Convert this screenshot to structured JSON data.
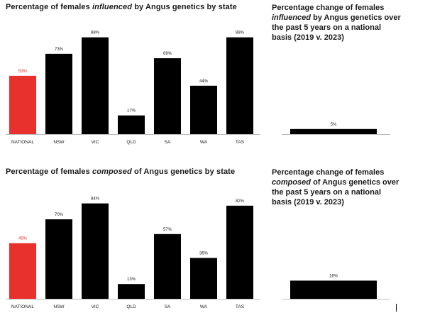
{
  "colors": {
    "national": "#e8302c",
    "state": "#000000",
    "text": "#1a1a1a"
  },
  "titles": {
    "chart1_pre": "Percentage of females ",
    "chart1_em": "influenced",
    "chart1_post": " by Angus genetics by state",
    "side1_pre": "Percentage change of females ",
    "side1_em": "influenced",
    "side1_post": " by Angus genetics over the past 5 years on a national basis (2019 v. 2023)",
    "chart2_pre": "Percentage of females ",
    "chart2_em": "composed",
    "chart2_post": " of Angus genetics by state",
    "side2_pre": "Percentage change of females ",
    "side2_em": "composed",
    "side2_post": " of Angus genetics over the past 5 years on a national basis (2019 v. 2023)"
  },
  "chart_data": [
    {
      "type": "bar",
      "categories": [
        "NATIONAL",
        "NSW",
        "VIC",
        "QLD",
        "SA",
        "WA",
        "TAS"
      ],
      "values": [
        53,
        73,
        88,
        17,
        69,
        44,
        88
      ],
      "labels": [
        "53%",
        "73%",
        "88%",
        "17%",
        "69%",
        "44%",
        "88%"
      ],
      "highlight": "NATIONAL",
      "ylim": [
        0,
        100
      ]
    },
    {
      "type": "bar",
      "categories": [
        ""
      ],
      "values": [
        5
      ],
      "labels": [
        "5%"
      ],
      "ylim": [
        0,
        100
      ]
    },
    {
      "type": "bar",
      "categories": [
        "NATIONAL",
        "NSW",
        "VIC",
        "QLD",
        "SA",
        "WA",
        "TAS"
      ],
      "values": [
        49,
        70,
        84,
        13,
        57,
        36,
        82
      ],
      "labels": [
        "49%",
        "70%",
        "84%",
        "13%",
        "57%",
        "36%",
        "82%"
      ],
      "highlight": "NATIONAL",
      "ylim": [
        0,
        100
      ]
    },
    {
      "type": "bar",
      "categories": [
        ""
      ],
      "values": [
        16
      ],
      "labels": [
        "16%"
      ],
      "ylim": [
        0,
        100
      ]
    }
  ]
}
